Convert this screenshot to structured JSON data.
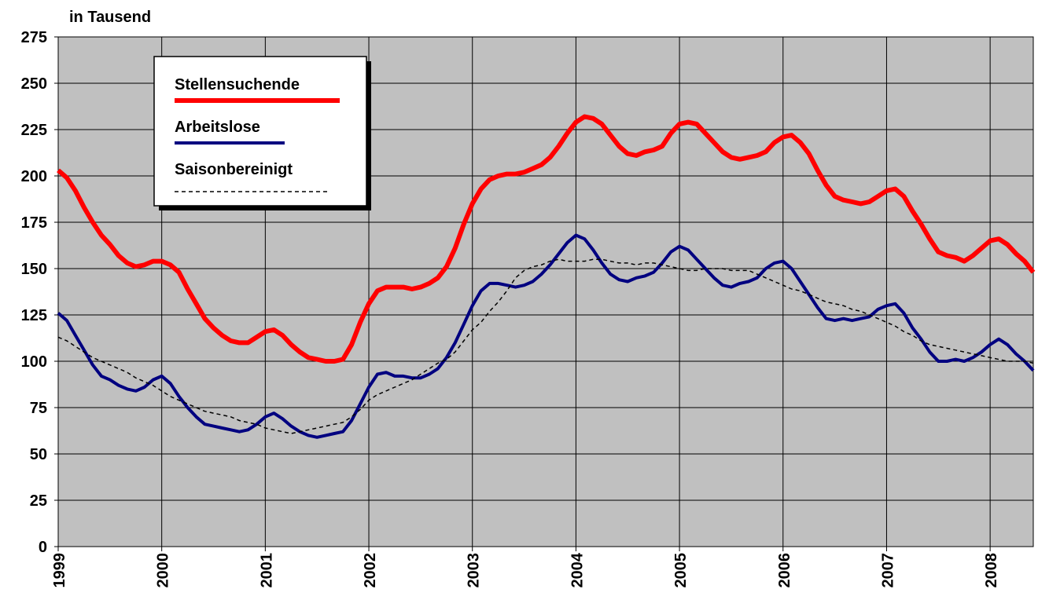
{
  "chart_data": {
    "type": "line",
    "y_label": "in Tausend",
    "categories": [
      "1999",
      null,
      null,
      null,
      null,
      null,
      null,
      null,
      null,
      null,
      null,
      null,
      "2000",
      null,
      null,
      null,
      null,
      null,
      null,
      null,
      null,
      null,
      null,
      null,
      "2001",
      null,
      null,
      null,
      null,
      null,
      null,
      null,
      null,
      null,
      null,
      null,
      "2002",
      null,
      null,
      null,
      null,
      null,
      null,
      null,
      null,
      null,
      null,
      null,
      "2003",
      null,
      null,
      null,
      null,
      null,
      null,
      null,
      null,
      null,
      null,
      null,
      "2004",
      null,
      null,
      null,
      null,
      null,
      null,
      null,
      null,
      null,
      null,
      null,
      "2005",
      null,
      null,
      null,
      null,
      null,
      null,
      null,
      null,
      null,
      null,
      null,
      "2006",
      null,
      null,
      null,
      null,
      null,
      null,
      null,
      null,
      null,
      null,
      null,
      "2007",
      null,
      null,
      null,
      null,
      null,
      null,
      null,
      null,
      null,
      null,
      null,
      "2008",
      null,
      null,
      null,
      null,
      null
    ],
    "series": [
      {
        "name": "Stellensuchende",
        "color": "#ff0000",
        "linewidth": 6,
        "style": "solid",
        "values": [
          203,
          199,
          192,
          183,
          175,
          168,
          163,
          157,
          153,
          151,
          152,
          154,
          154,
          152,
          148,
          139,
          131,
          123,
          118,
          114,
          111,
          110,
          110,
          113,
          116,
          117,
          114,
          109,
          105,
          102,
          101,
          100,
          100,
          101,
          109,
          121,
          131,
          138,
          140,
          140,
          140,
          139,
          140,
          142,
          145,
          151,
          161,
          174,
          185,
          193,
          198,
          200,
          201,
          201,
          202,
          204,
          206,
          210,
          216,
          223,
          229,
          232,
          231,
          228,
          222,
          216,
          212,
          211,
          213,
          214,
          216,
          223,
          228,
          229,
          228,
          223,
          218,
          213,
          210,
          209,
          210,
          211,
          213,
          218,
          221,
          222,
          218,
          212,
          203,
          195,
          189,
          187,
          186,
          185,
          186,
          189,
          192,
          193,
          189,
          181,
          174,
          166,
          159,
          157,
          156,
          154,
          157,
          161,
          165,
          166,
          163,
          158,
          154,
          148
        ]
      },
      {
        "name": "Arbeitslose",
        "color": "#000080",
        "linewidth": 4,
        "style": "solid",
        "values": [
          126,
          122,
          114,
          106,
          98,
          92,
          90,
          87,
          85,
          84,
          86,
          90,
          92,
          88,
          81,
          75,
          70,
          66,
          65,
          64,
          63,
          62,
          63,
          66,
          70,
          72,
          69,
          65,
          62,
          60,
          59,
          60,
          61,
          62,
          68,
          77,
          86,
          93,
          94,
          92,
          92,
          91,
          91,
          93,
          96,
          102,
          110,
          120,
          130,
          138,
          142,
          142,
          141,
          140,
          141,
          143,
          147,
          152,
          158,
          164,
          168,
          166,
          160,
          153,
          147,
          144,
          143,
          145,
          146,
          148,
          153,
          159,
          162,
          160,
          155,
          150,
          145,
          141,
          140,
          142,
          143,
          145,
          150,
          153,
          154,
          150,
          143,
          136,
          129,
          123,
          122,
          123,
          122,
          123,
          124,
          128,
          130,
          131,
          126,
          118,
          112,
          105,
          100,
          100,
          101,
          100,
          102,
          105,
          109,
          112,
          109,
          104,
          100,
          95
        ]
      },
      {
        "name": "Saisonbereinigt",
        "color": "#000000",
        "linewidth": 1.5,
        "style": "dashed",
        "values": [
          113,
          111,
          108,
          105,
          102,
          100,
          98,
          96,
          94,
          91,
          89,
          87,
          84,
          81,
          79,
          77,
          75,
          73,
          72,
          71,
          70,
          68,
          67,
          66,
          64,
          63,
          62,
          61,
          62,
          63,
          64,
          65,
          66,
          67,
          70,
          74,
          79,
          82,
          84,
          86,
          88,
          90,
          93,
          96,
          99,
          101,
          105,
          111,
          117,
          121,
          127,
          132,
          138,
          145,
          149,
          151,
          152,
          154,
          155,
          154,
          154,
          154,
          155,
          155,
          154,
          153,
          153,
          152,
          153,
          153,
          152,
          151,
          150,
          149,
          149,
          150,
          150,
          150,
          149,
          149,
          149,
          147,
          145,
          143,
          141,
          139,
          138,
          136,
          134,
          132,
          131,
          130,
          128,
          127,
          125,
          123,
          121,
          119,
          116,
          114,
          111,
          109,
          108,
          107,
          106,
          105,
          104,
          103,
          102,
          101,
          100,
          100,
          100,
          99
        ]
      }
    ],
    "ylim": [
      0,
      275
    ],
    "yticks": [
      0,
      25,
      50,
      75,
      100,
      125,
      150,
      175,
      200,
      225,
      250,
      275
    ],
    "grid": true,
    "legend": "upper left",
    "background": "#c0c0c0"
  }
}
